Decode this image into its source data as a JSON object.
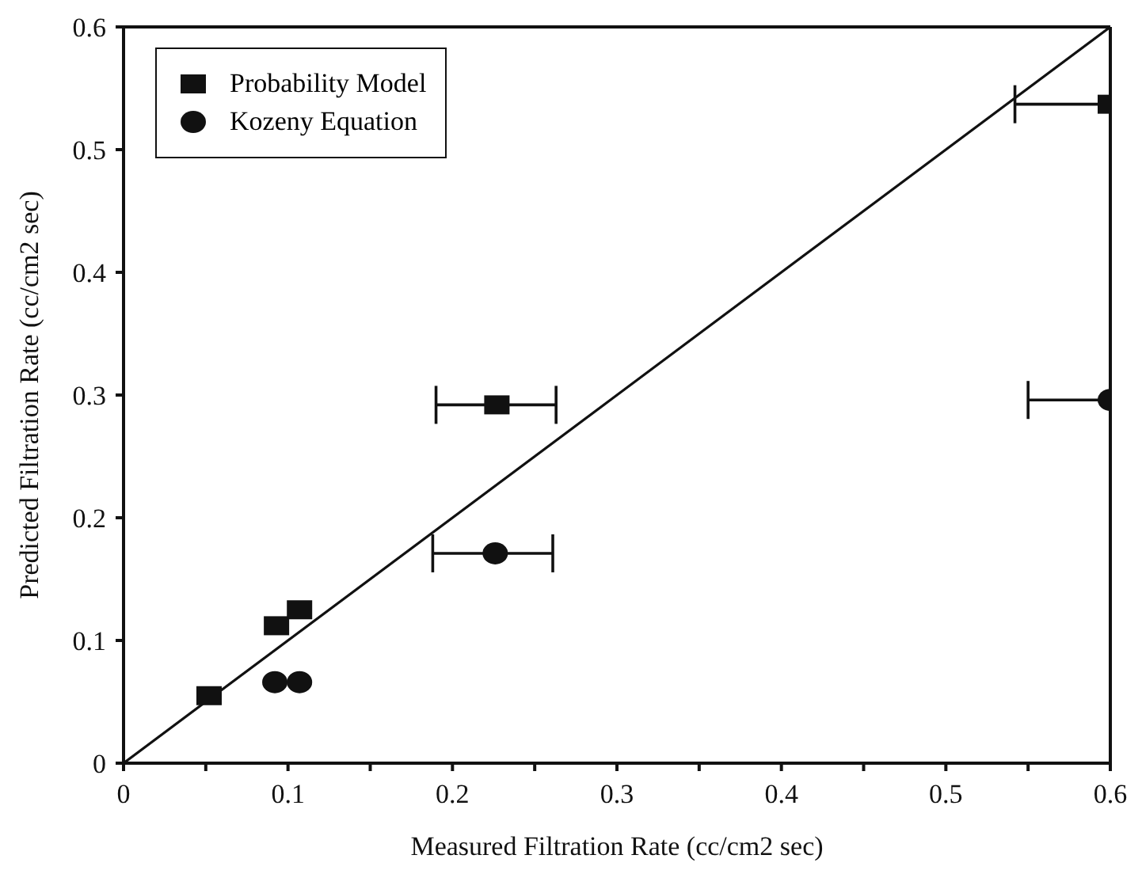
{
  "chart_data": {
    "type": "scatter",
    "xlabel": "Measured Filtration Rate (cc/cm2 sec)",
    "ylabel": "Predicted Filtration Rate (cc/cm2 sec)",
    "xlim": [
      0,
      0.6
    ],
    "ylim": [
      0,
      0.6
    ],
    "xticks": [
      0,
      {
        "value": 0.05,
        "label": null
      },
      0.1,
      {
        "value": 0.15,
        "label": null
      },
      0.2,
      {
        "value": 0.25,
        "label": null
      },
      0.3,
      {
        "value": 0.35,
        "label": null
      },
      0.4,
      {
        "value": 0.45,
        "label": null
      },
      0.5,
      {
        "value": 0.55,
        "label": null
      },
      0.6
    ],
    "yticks": [
      0,
      0.1,
      0.2,
      0.3,
      0.4,
      0.5,
      0.6
    ],
    "legend": "top left",
    "series": [
      {
        "name": "Probability Model",
        "color": "#111111",
        "marker": "square",
        "x": [
          0.052,
          0.093,
          0.107,
          0.227,
          0.6
        ],
        "values": [
          0.055,
          0.112,
          0.125,
          0.292,
          0.537
        ],
        "xerrors": [
          null,
          null,
          null,
          [
            0.19,
            0.263
          ],
          [
            0.542,
            0.6
          ]
        ]
      },
      {
        "name": "Kozeny Equation",
        "color": "#111111",
        "marker": "circle",
        "x": [
          0.092,
          0.107,
          0.226,
          0.6
        ],
        "values": [
          0.066,
          0.066,
          0.171,
          0.296
        ],
        "xerrors": [
          null,
          null,
          [
            0.188,
            0.261
          ],
          [
            0.55,
            0.6
          ]
        ]
      },
      {
        "type": "line",
        "color": "#111111",
        "marker": "none",
        "line_style": "solid",
        "x": [
          0,
          0.6
        ],
        "values": [
          0,
          0.6
        ]
      }
    ]
  }
}
